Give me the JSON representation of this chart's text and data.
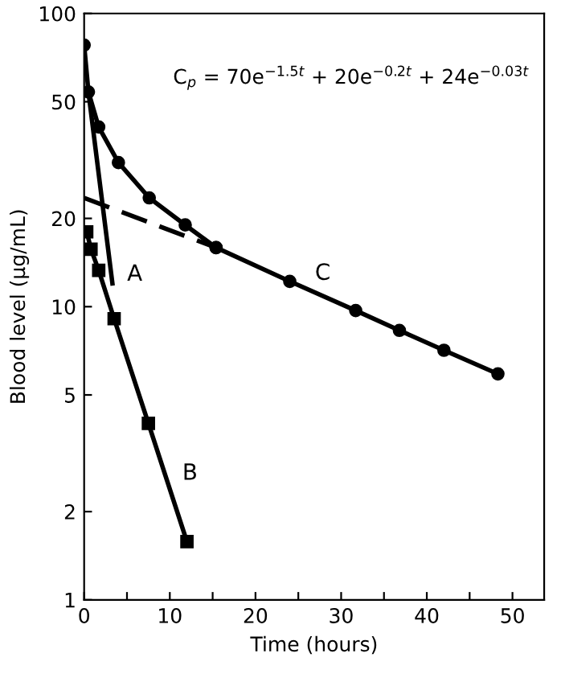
{
  "chart_data": {
    "type": "line",
    "xlabel": "Time (hours)",
    "ylabel": "Blood level (µg/mL)",
    "log": "y",
    "xlim": [
      0,
      53.7
    ],
    "ylim": [
      1,
      100
    ],
    "xticks": [
      0,
      {
        "value": 5,
        "label": null
      },
      10,
      {
        "value": 15,
        "label": null
      },
      20,
      {
        "value": 25,
        "label": null
      },
      30,
      {
        "value": 35,
        "label": null
      },
      40,
      {
        "value": 45,
        "label": null
      },
      50
    ],
    "yticks": [
      1,
      2,
      5,
      10,
      20,
      50,
      100
    ],
    "grid": false,
    "legend": false,
    "series": [
      {
        "color": "#000000",
        "marker": "circle",
        "line_style": "solid",
        "x": [
          0,
          0.5,
          1.7,
          4,
          7.6,
          11.8,
          15.4
        ],
        "values": [
          78,
          54,
          41,
          31,
          23.5,
          19,
          15.9
        ]
      },
      {
        "name": "C",
        "color": "#000000",
        "marker": "circle",
        "line_style": "solid",
        "x": [
          15.4,
          24,
          31.7,
          36.8,
          42,
          48.3
        ],
        "values": [
          15.9,
          12.2,
          9.7,
          8.3,
          7.1,
          5.9
        ]
      },
      {
        "color": "#000000",
        "marker": "none",
        "line_style": "dashed",
        "x": [
          0,
          15.4
        ],
        "values": [
          23.5,
          15.9
        ]
      },
      {
        "name": "A",
        "color": "#000000",
        "marker": "none",
        "line_style": "solid",
        "x": [
          0.5,
          3.3
        ],
        "values": [
          54,
          12
        ]
      },
      {
        "name": "B",
        "color": "#000000",
        "marker": "square",
        "line_style": "solid",
        "x": [
          0.3,
          0.8,
          1.7,
          3.5,
          7.5,
          12
        ],
        "values": [
          18,
          15.7,
          13.3,
          9.1,
          4.0,
          1.58
        ]
      }
    ],
    "annotations": [
      "C$_{p}$ = 70e$^{−1.5t}$ + 20e$^{−0.2t}$ + 24e$^{−0.03t}$"
    ]
  }
}
